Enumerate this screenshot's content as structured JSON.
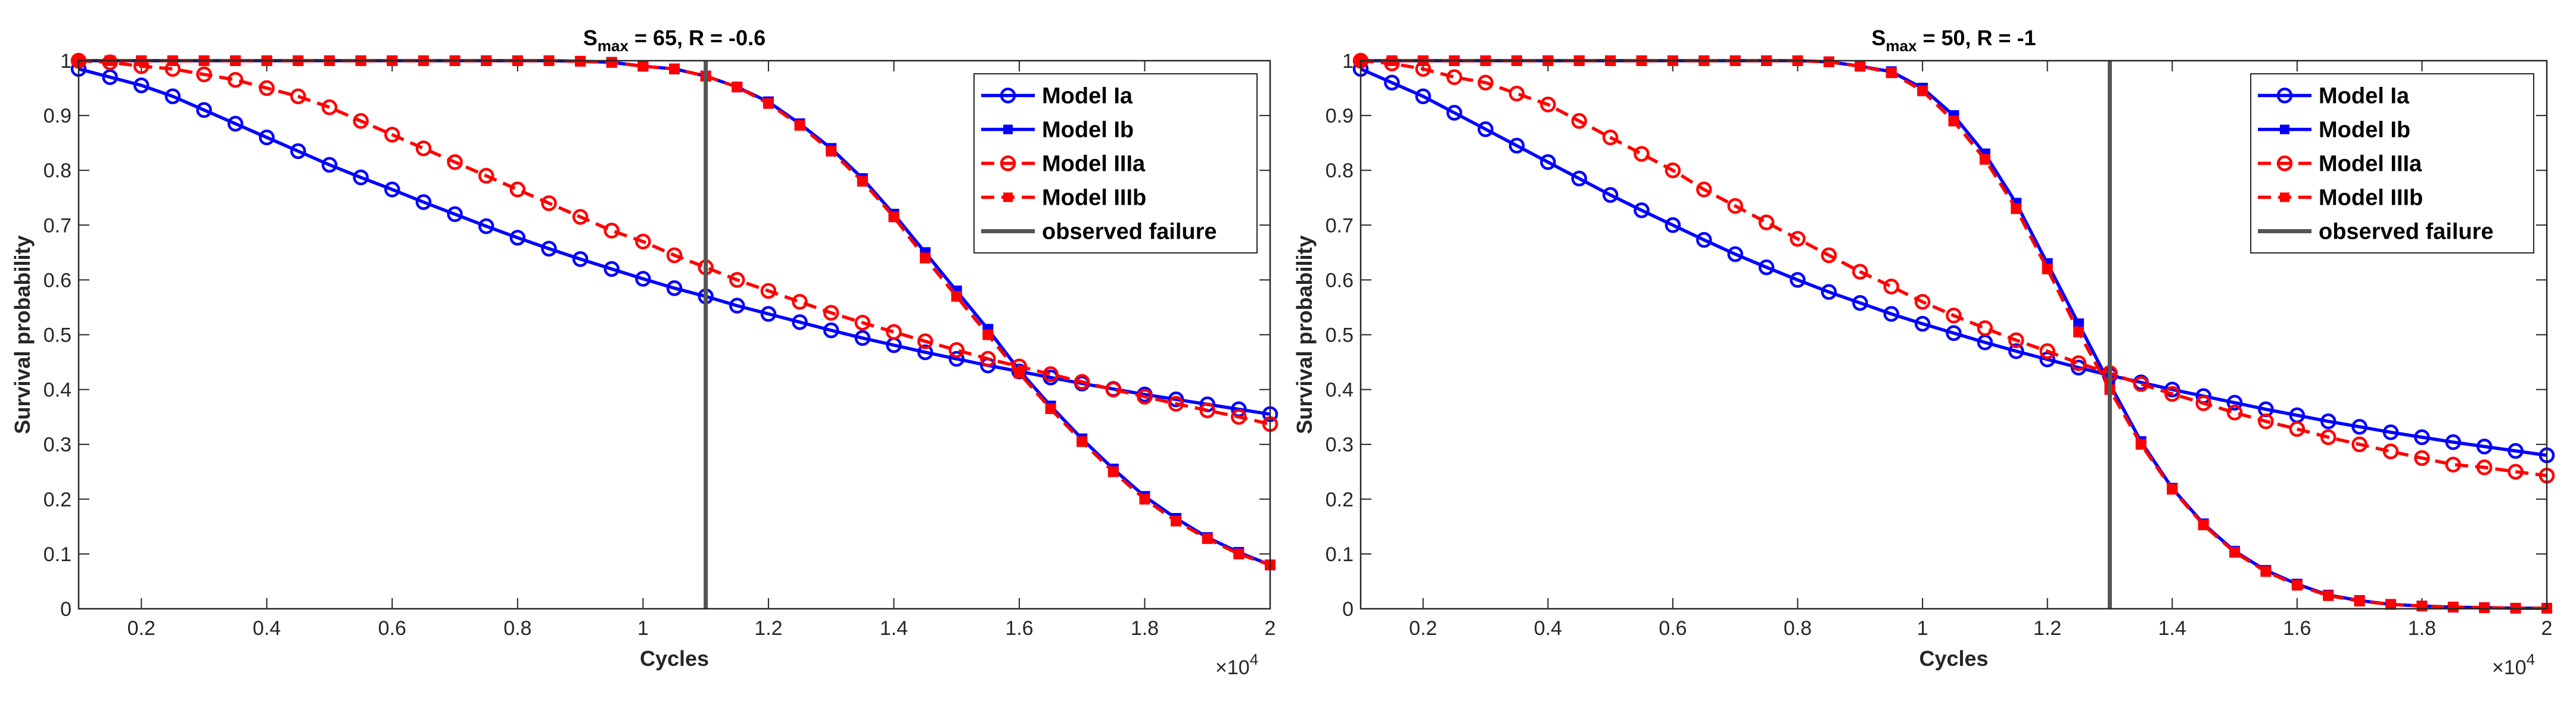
{
  "chart_data": [
    {
      "type": "line",
      "title": [
        "S",
        "max",
        " = 65, R = -0.6"
      ],
      "x_label": "Cycles",
      "y_label": "Survival probability",
      "x_exponent": [
        "×10",
        "4"
      ],
      "xlim": [
        1000,
        20000
      ],
      "ylim": [
        0,
        1
      ],
      "xticks": [
        {
          "value": 2000,
          "label": "0.2"
        },
        {
          "value": 4000,
          "label": "0.4"
        },
        {
          "value": 6000,
          "label": "0.6"
        },
        {
          "value": 8000,
          "label": "0.8"
        },
        {
          "value": 10000,
          "label": "1"
        },
        {
          "value": 12000,
          "label": "1.2"
        },
        {
          "value": 14000,
          "label": "1.4"
        },
        {
          "value": 16000,
          "label": "1.6"
        },
        {
          "value": 18000,
          "label": "1.8"
        },
        {
          "value": 20000,
          "label": "2"
        }
      ],
      "yticks": [
        0,
        0.1,
        0.2,
        0.3,
        0.4,
        0.5,
        0.6,
        0.7,
        0.8,
        0.9,
        1
      ],
      "x": [
        1000,
        1500,
        2000,
        2500,
        3000,
        3500,
        4000,
        4500,
        5000,
        5500,
        6000,
        6500,
        7000,
        7500,
        8000,
        8500,
        9000,
        9500,
        10000,
        10500,
        11000,
        11500,
        12000,
        12500,
        13000,
        13500,
        14000,
        14500,
        15000,
        15500,
        16000,
        16500,
        17000,
        17500,
        18000,
        18500,
        19000,
        19500,
        20000
      ],
      "series": [
        {
          "name": "Model Ia",
          "color": "#0000ff",
          "marker": "circle",
          "dashed": false,
          "values": [
            0.985,
            0.97,
            0.955,
            0.935,
            0.91,
            0.885,
            0.86,
            0.835,
            0.81,
            0.787,
            0.765,
            0.742,
            0.72,
            0.698,
            0.677,
            0.657,
            0.638,
            0.62,
            0.602,
            0.585,
            0.57,
            0.553,
            0.538,
            0.523,
            0.508,
            0.494,
            0.481,
            0.468,
            0.456,
            0.444,
            0.433,
            0.422,
            0.411,
            0.401,
            0.391,
            0.382,
            0.373,
            0.364,
            0.355
          ]
        },
        {
          "name": "Model Ib",
          "color": "#0000ff",
          "marker": "square",
          "dashed": false,
          "values": [
            1,
            1,
            1,
            1,
            1,
            1,
            1,
            1,
            1,
            1,
            1,
            1,
            1,
            1,
            1,
            1,
            0.999,
            0.997,
            0.99,
            0.985,
            0.972,
            0.952,
            0.925,
            0.885,
            0.84,
            0.785,
            0.72,
            0.65,
            0.58,
            0.51,
            0.435,
            0.37,
            0.31,
            0.255,
            0.205,
            0.165,
            0.13,
            0.103,
            0.08
          ]
        },
        {
          "name": "Model IIIa",
          "color": "#ff0000",
          "marker": "circle",
          "dashed": true,
          "values": [
            1,
            0.997,
            0.99,
            0.985,
            0.975,
            0.965,
            0.95,
            0.935,
            0.915,
            0.89,
            0.865,
            0.84,
            0.815,
            0.79,
            0.765,
            0.74,
            0.715,
            0.69,
            0.67,
            0.645,
            0.623,
            0.6,
            0.58,
            0.56,
            0.54,
            0.522,
            0.505,
            0.488,
            0.472,
            0.456,
            0.442,
            0.428,
            0.414,
            0.4,
            0.387,
            0.374,
            0.362,
            0.35,
            0.337
          ]
        },
        {
          "name": "Model IIIb",
          "color": "#ff0000",
          "marker": "square",
          "dashed": true,
          "values": [
            1,
            1,
            1,
            1,
            1,
            1,
            1,
            1,
            1,
            1,
            1,
            1,
            1,
            1,
            1,
            1,
            0.999,
            0.997,
            0.99,
            0.985,
            0.972,
            0.952,
            0.922,
            0.882,
            0.835,
            0.78,
            0.715,
            0.64,
            0.57,
            0.5,
            0.43,
            0.365,
            0.305,
            0.25,
            0.2,
            0.16,
            0.128,
            0.1,
            0.08
          ]
        }
      ],
      "observed_failure": {
        "name": "observed failure",
        "color": "#555555",
        "value": 11000
      },
      "legend": "upper right"
    },
    {
      "type": "line",
      "title": [
        "S",
        "max",
        " = 50, R = -1"
      ],
      "x_label": "Cycles",
      "y_label": "Survival probability",
      "x_exponent": [
        "×10",
        "4"
      ],
      "xlim": [
        1000,
        20000
      ],
      "ylim": [
        0,
        1
      ],
      "xticks": [
        {
          "value": 2000,
          "label": "0.2"
        },
        {
          "value": 4000,
          "label": "0.4"
        },
        {
          "value": 6000,
          "label": "0.6"
        },
        {
          "value": 8000,
          "label": "0.8"
        },
        {
          "value": 10000,
          "label": "1"
        },
        {
          "value": 12000,
          "label": "1.2"
        },
        {
          "value": 14000,
          "label": "1.4"
        },
        {
          "value": 16000,
          "label": "1.6"
        },
        {
          "value": 18000,
          "label": "1.8"
        },
        {
          "value": 20000,
          "label": "2"
        }
      ],
      "yticks": [
        0,
        0.1,
        0.2,
        0.3,
        0.4,
        0.5,
        0.6,
        0.7,
        0.8,
        0.9,
        1
      ],
      "x": [
        1000,
        1500,
        2000,
        2500,
        3000,
        3500,
        4000,
        4500,
        5000,
        5500,
        6000,
        6500,
        7000,
        7500,
        8000,
        8500,
        9000,
        9500,
        10000,
        10500,
        11000,
        11500,
        12000,
        12500,
        13000,
        13500,
        14000,
        14500,
        15000,
        15500,
        16000,
        16500,
        17000,
        17500,
        18000,
        18500,
        19000,
        19500,
        20000
      ],
      "series": [
        {
          "name": "Model Ia",
          "color": "#0000ff",
          "marker": "circle",
          "dashed": false,
          "values": [
            0.985,
            0.96,
            0.935,
            0.905,
            0.875,
            0.845,
            0.815,
            0.785,
            0.755,
            0.727,
            0.7,
            0.673,
            0.647,
            0.623,
            0.6,
            0.578,
            0.558,
            0.538,
            0.52,
            0.503,
            0.486,
            0.47,
            0.455,
            0.44,
            0.426,
            0.413,
            0.4,
            0.388,
            0.376,
            0.364,
            0.353,
            0.342,
            0.332,
            0.322,
            0.313,
            0.304,
            0.296,
            0.288,
            0.28
          ]
        },
        {
          "name": "Model Ib",
          "color": "#0000ff",
          "marker": "square",
          "dashed": false,
          "values": [
            1,
            1,
            1,
            1,
            1,
            1,
            1,
            1,
            1,
            1,
            1,
            1,
            1,
            1,
            1,
            0.998,
            0.99,
            0.98,
            0.95,
            0.9,
            0.83,
            0.74,
            0.63,
            0.52,
            0.41,
            0.305,
            0.22,
            0.155,
            0.105,
            0.07,
            0.045,
            0.025,
            0.015,
            0.008,
            0.005,
            0.003,
            0.002,
            0.001,
            0.001
          ]
        },
        {
          "name": "Model IIIa",
          "color": "#ff0000",
          "marker": "circle",
          "dashed": true,
          "values": [
            1,
            0.995,
            0.985,
            0.97,
            0.96,
            0.94,
            0.92,
            0.89,
            0.86,
            0.83,
            0.8,
            0.765,
            0.735,
            0.705,
            0.675,
            0.645,
            0.615,
            0.588,
            0.56,
            0.535,
            0.512,
            0.49,
            0.47,
            0.448,
            0.43,
            0.41,
            0.392,
            0.375,
            0.358,
            0.342,
            0.328,
            0.313,
            0.3,
            0.287,
            0.275,
            0.263,
            0.258,
            0.25,
            0.243
          ]
        },
        {
          "name": "Model IIIb",
          "color": "#ff0000",
          "marker": "square",
          "dashed": true,
          "values": [
            1,
            1,
            1,
            1,
            1,
            1,
            1,
            1,
            1,
            1,
            1,
            1,
            1,
            1,
            1,
            0.998,
            0.99,
            0.978,
            0.945,
            0.89,
            0.82,
            0.73,
            0.62,
            0.505,
            0.4,
            0.3,
            0.218,
            0.153,
            0.103,
            0.068,
            0.043,
            0.024,
            0.014,
            0.008,
            0.005,
            0.003,
            0.002,
            0.001,
            0.001
          ]
        }
      ],
      "observed_failure": {
        "name": "observed failure",
        "color": "#555555",
        "value": 13000
      },
      "legend": "upper right"
    }
  ]
}
